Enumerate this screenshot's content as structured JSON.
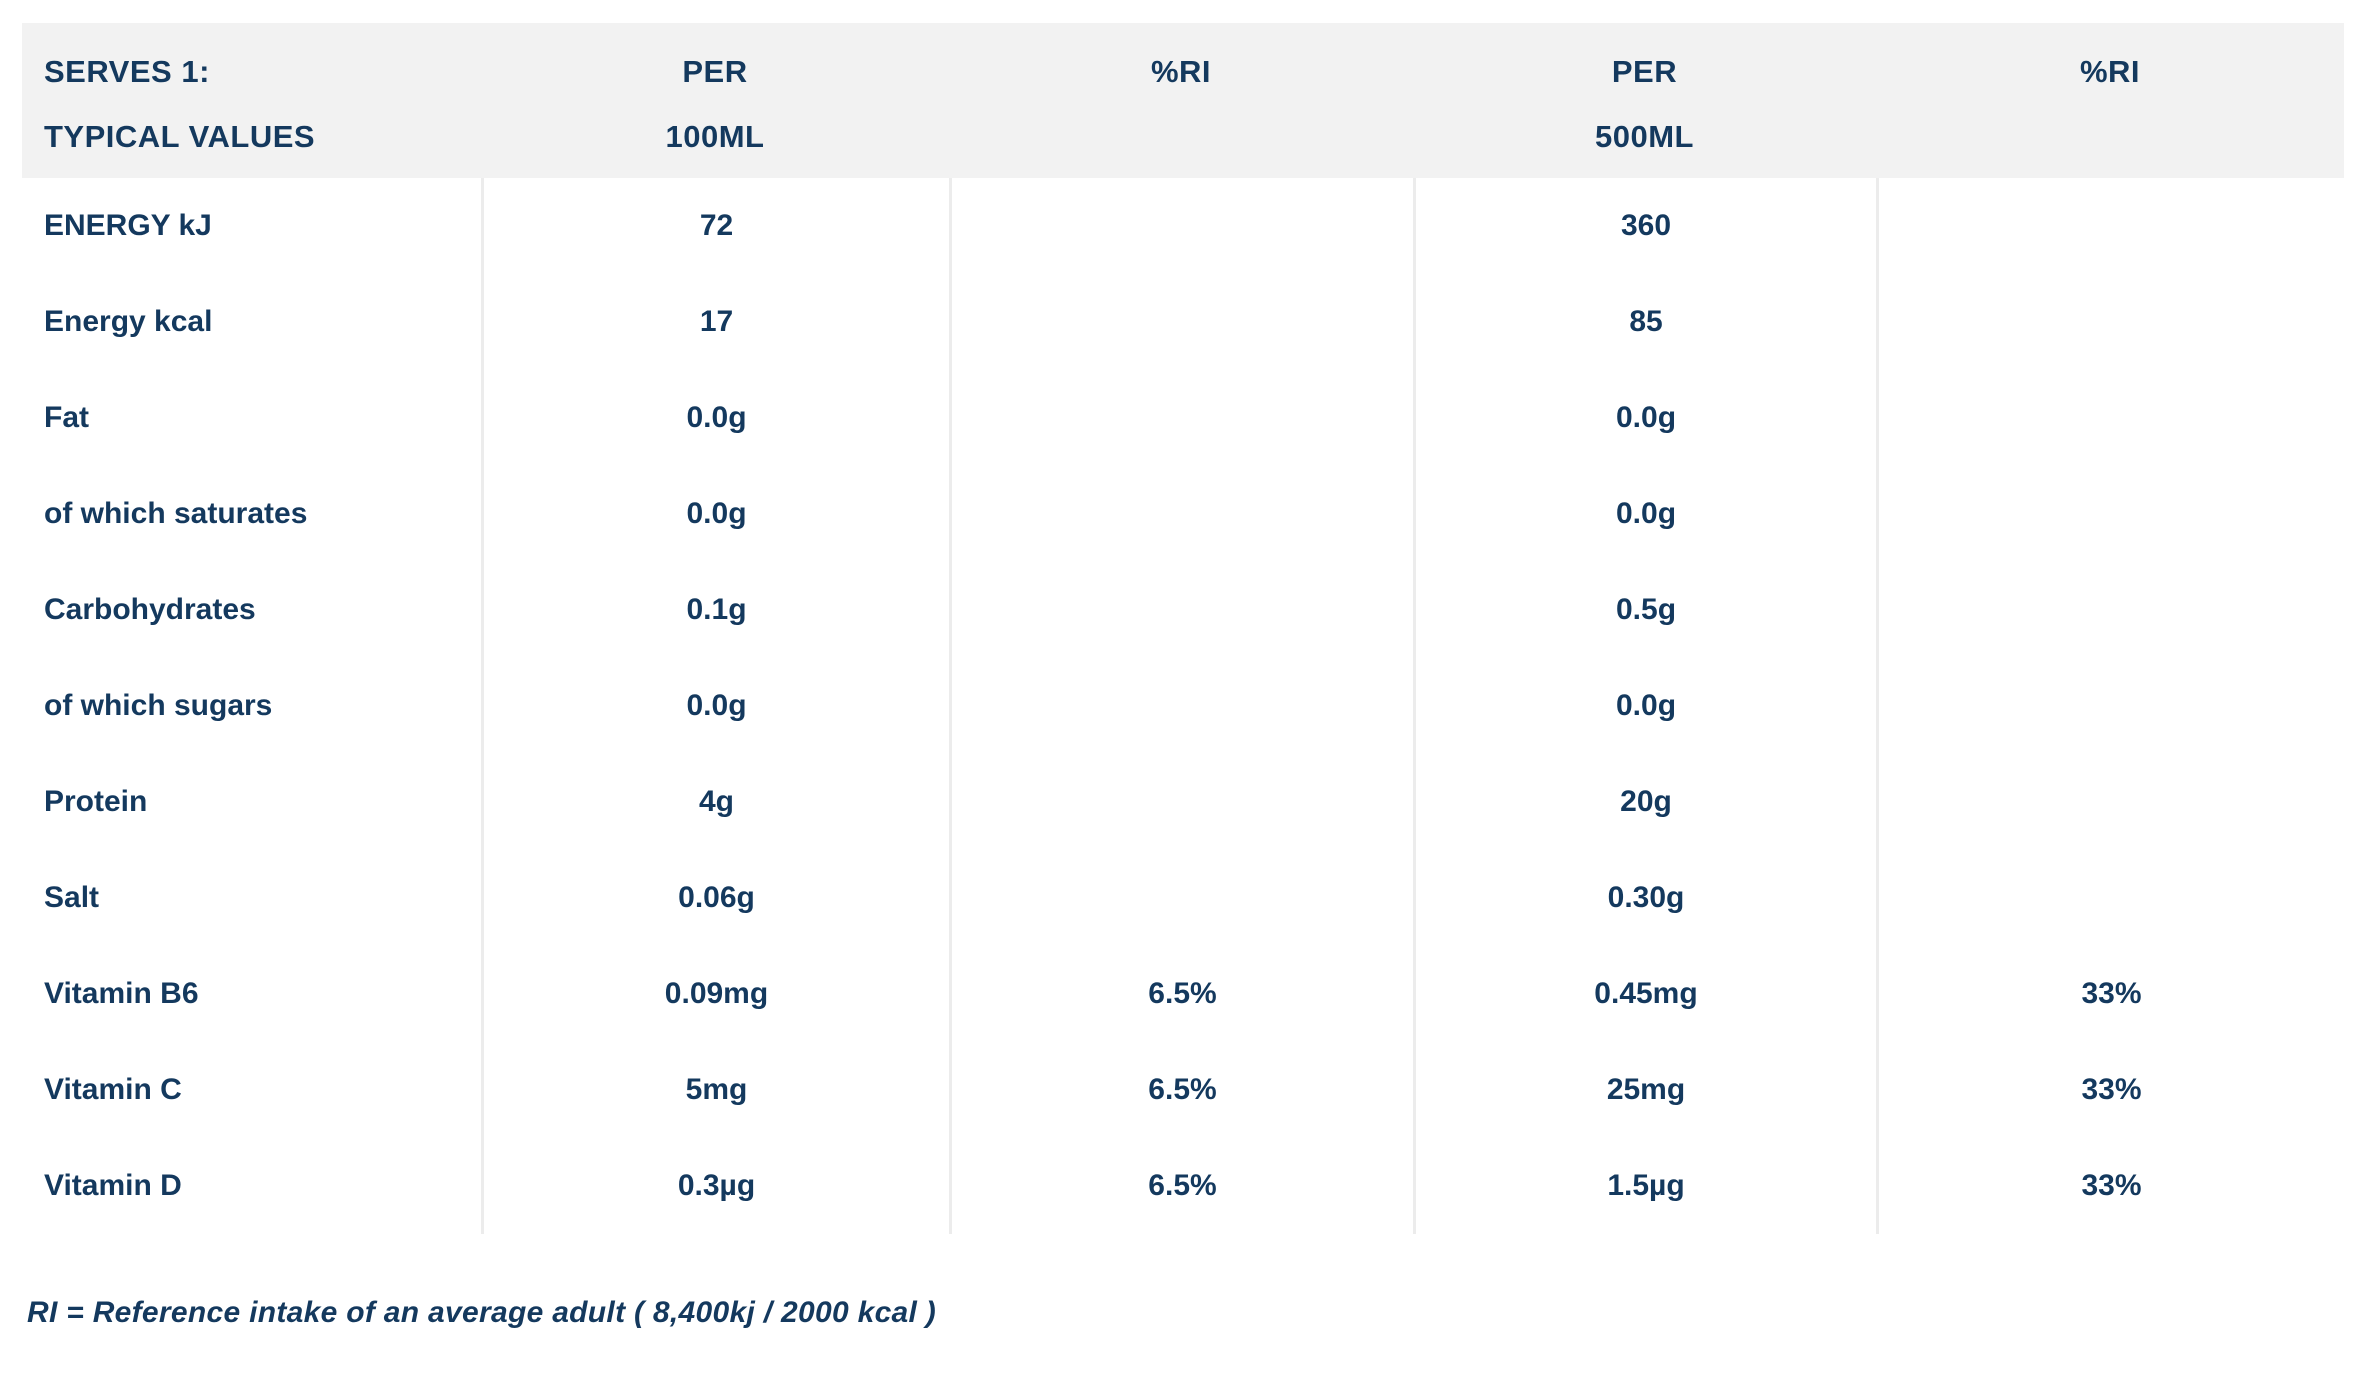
{
  "colors": {
    "navy": "#14395e",
    "header_bg": "#f2f2f2",
    "line": "#ececec",
    "page_bg": "#ffffff"
  },
  "table": {
    "header": {
      "serves": "SERVES 1:",
      "typical_values": "TYPICAL VALUES",
      "per": "PER",
      "ri": "%RI",
      "vol_100ml": "100ML",
      "vol_500ml": "500ML"
    },
    "rows": [
      {
        "label": "ENERGY kJ",
        "per_100ml": "72",
        "ri_100ml": "",
        "per_500ml": "360",
        "ri_500ml": ""
      },
      {
        "label": "Energy kcal",
        "per_100ml": "17",
        "ri_100ml": "",
        "per_500ml": "85",
        "ri_500ml": ""
      },
      {
        "label": "Fat",
        "per_100ml": "0.0g",
        "ri_100ml": "",
        "per_500ml": "0.0g",
        "ri_500ml": ""
      },
      {
        "label": "of which saturates",
        "per_100ml": "0.0g",
        "ri_100ml": "",
        "per_500ml": "0.0g",
        "ri_500ml": ""
      },
      {
        "label": "Carbohydrates",
        "per_100ml": "0.1g",
        "ri_100ml": "",
        "per_500ml": "0.5g",
        "ri_500ml": ""
      },
      {
        "label": "of which sugars",
        "per_100ml": "0.0g",
        "ri_100ml": "",
        "per_500ml": "0.0g",
        "ri_500ml": ""
      },
      {
        "label": "Protein",
        "per_100ml": "4g",
        "ri_100ml": "",
        "per_500ml": "20g",
        "ri_500ml": ""
      },
      {
        "label": "Salt",
        "per_100ml": "0.06g",
        "ri_100ml": "",
        "per_500ml": "0.30g",
        "ri_500ml": ""
      },
      {
        "label": "Vitamin B6",
        "per_100ml": "0.09mg",
        "ri_100ml": "6.5%",
        "per_500ml": "0.45mg",
        "ri_500ml": "33%"
      },
      {
        "label": "Vitamin C",
        "per_100ml": "5mg",
        "ri_100ml": "6.5%",
        "per_500ml": "25mg",
        "ri_500ml": "33%"
      },
      {
        "label": "Vitamin D",
        "per_100ml": "0.3µg",
        "ri_100ml": "6.5%",
        "per_500ml": "1.5µg",
        "ri_500ml": "33%"
      }
    ],
    "footnote": "RI = Reference intake of an average adult ( 8,400kj / 2000 kcal )"
  }
}
